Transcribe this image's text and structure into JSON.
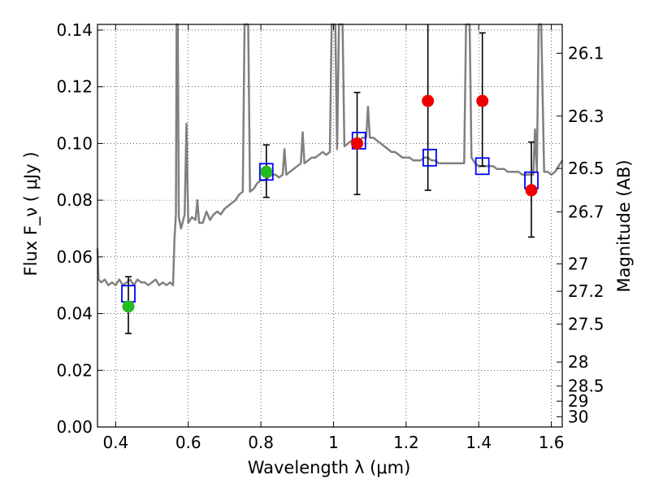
{
  "chart_data": {
    "type": "scatter",
    "title": "",
    "xlabel": "Wavelength  λ (μm)",
    "ylabel": "Flux  F_ν  ( μJy )",
    "ylabel_right": "Magnitude (AB)",
    "xlim": [
      0.35,
      1.63
    ],
    "ylim": [
      0.0,
      0.142
    ],
    "grid": true,
    "x_ticks": [
      0.4,
      0.6,
      0.8,
      1.0,
      1.2,
      1.4,
      1.6
    ],
    "x_tick_labels": [
      "0.4",
      "0.6",
      "0.8",
      "1",
      "1.2",
      "1.4",
      "1.6"
    ],
    "y_ticks": [
      0.0,
      0.02,
      0.04,
      0.06,
      0.08,
      0.1,
      0.12,
      0.14
    ],
    "y_tick_labels": [
      "0.00",
      "0.02",
      "0.04",
      "0.06",
      "0.08",
      "0.10",
      "0.12",
      "0.14"
    ],
    "right_ticks": [
      {
        "label": "26.1",
        "mag": 26.1
      },
      {
        "label": "26.3",
        "mag": 26.3
      },
      {
        "label": "26.5",
        "mag": 26.5
      },
      {
        "label": "26.7",
        "mag": 26.7
      },
      {
        "label": "27",
        "mag": 27.0
      },
      {
        "label": "27.2",
        "mag": 27.2
      },
      {
        "label": "27.5",
        "mag": 27.5
      },
      {
        "label": "28",
        "mag": 28.0
      },
      {
        "label": "28.5",
        "mag": 28.5
      },
      {
        "label": "29",
        "mag": 29.0
      },
      {
        "label": "30",
        "mag": 30.0
      }
    ],
    "model_spectrum": {
      "color": "#808080",
      "points": [
        [
          0.35,
          0.063
        ],
        [
          0.353,
          0.052
        ],
        [
          0.36,
          0.051
        ],
        [
          0.37,
          0.052
        ],
        [
          0.38,
          0.05
        ],
        [
          0.39,
          0.051
        ],
        [
          0.4,
          0.05
        ],
        [
          0.41,
          0.052
        ],
        [
          0.42,
          0.05
        ],
        [
          0.43,
          0.051
        ],
        [
          0.44,
          0.052
        ],
        [
          0.45,
          0.05
        ],
        [
          0.46,
          0.052
        ],
        [
          0.47,
          0.051
        ],
        [
          0.48,
          0.051
        ],
        [
          0.49,
          0.05
        ],
        [
          0.5,
          0.051
        ],
        [
          0.51,
          0.052
        ],
        [
          0.52,
          0.05
        ],
        [
          0.53,
          0.051
        ],
        [
          0.54,
          0.05
        ],
        [
          0.55,
          0.051
        ],
        [
          0.558,
          0.05
        ],
        [
          0.562,
          0.066
        ],
        [
          0.566,
          0.075
        ],
        [
          0.568,
          0.142
        ],
        [
          0.571,
          0.142
        ],
        [
          0.574,
          0.074
        ],
        [
          0.58,
          0.07
        ],
        [
          0.59,
          0.075
        ],
        [
          0.595,
          0.107
        ],
        [
          0.6,
          0.072
        ],
        [
          0.61,
          0.074
        ],
        [
          0.62,
          0.073
        ],
        [
          0.625,
          0.08
        ],
        [
          0.63,
          0.072
        ],
        [
          0.64,
          0.072
        ],
        [
          0.65,
          0.076
        ],
        [
          0.66,
          0.073
        ],
        [
          0.67,
          0.075
        ],
        [
          0.68,
          0.076
        ],
        [
          0.69,
          0.075
        ],
        [
          0.7,
          0.077
        ],
        [
          0.71,
          0.078
        ],
        [
          0.72,
          0.079
        ],
        [
          0.73,
          0.08
        ],
        [
          0.74,
          0.082
        ],
        [
          0.75,
          0.083
        ],
        [
          0.755,
          0.142
        ],
        [
          0.765,
          0.142
        ],
        [
          0.77,
          0.083
        ],
        [
          0.78,
          0.084
        ],
        [
          0.79,
          0.086
        ],
        [
          0.8,
          0.087
        ],
        [
          0.81,
          0.087
        ],
        [
          0.82,
          0.088
        ],
        [
          0.83,
          0.089
        ],
        [
          0.84,
          0.089
        ],
        [
          0.85,
          0.088
        ],
        [
          0.86,
          0.089
        ],
        [
          0.865,
          0.098
        ],
        [
          0.87,
          0.089
        ],
        [
          0.88,
          0.09
        ],
        [
          0.89,
          0.091
        ],
        [
          0.9,
          0.092
        ],
        [
          0.91,
          0.093
        ],
        [
          0.915,
          0.104
        ],
        [
          0.92,
          0.093
        ],
        [
          0.93,
          0.094
        ],
        [
          0.94,
          0.095
        ],
        [
          0.95,
          0.095
        ],
        [
          0.96,
          0.096
        ],
        [
          0.97,
          0.097
        ],
        [
          0.98,
          0.096
        ],
        [
          0.99,
          0.097
        ],
        [
          0.995,
          0.142
        ],
        [
          1.005,
          0.142
        ],
        [
          1.01,
          0.098
        ],
        [
          1.015,
          0.142
        ],
        [
          1.025,
          0.142
        ],
        [
          1.03,
          0.099
        ],
        [
          1.04,
          0.1
        ],
        [
          1.05,
          0.101
        ],
        [
          1.06,
          0.101
        ],
        [
          1.07,
          0.101
        ],
        [
          1.08,
          0.102
        ],
        [
          1.09,
          0.102
        ],
        [
          1.095,
          0.113
        ],
        [
          1.1,
          0.102
        ],
        [
          1.11,
          0.102
        ],
        [
          1.12,
          0.101
        ],
        [
          1.13,
          0.1
        ],
        [
          1.14,
          0.099
        ],
        [
          1.15,
          0.098
        ],
        [
          1.16,
          0.097
        ],
        [
          1.17,
          0.097
        ],
        [
          1.18,
          0.096
        ],
        [
          1.19,
          0.095
        ],
        [
          1.2,
          0.095
        ],
        [
          1.21,
          0.095
        ],
        [
          1.22,
          0.094
        ],
        [
          1.23,
          0.094
        ],
        [
          1.24,
          0.094
        ],
        [
          1.25,
          0.095
        ],
        [
          1.26,
          0.095
        ],
        [
          1.27,
          0.094
        ],
        [
          1.28,
          0.094
        ],
        [
          1.29,
          0.093
        ],
        [
          1.3,
          0.093
        ],
        [
          1.31,
          0.093
        ],
        [
          1.32,
          0.093
        ],
        [
          1.33,
          0.093
        ],
        [
          1.34,
          0.093
        ],
        [
          1.35,
          0.093
        ],
        [
          1.36,
          0.093
        ],
        [
          1.365,
          0.142
        ],
        [
          1.375,
          0.142
        ],
        [
          1.38,
          0.095
        ],
        [
          1.39,
          0.093
        ],
        [
          1.4,
          0.092
        ],
        [
          1.41,
          0.092
        ],
        [
          1.42,
          0.092
        ],
        [
          1.43,
          0.092
        ],
        [
          1.44,
          0.092
        ],
        [
          1.45,
          0.091
        ],
        [
          1.46,
          0.091
        ],
        [
          1.47,
          0.091
        ],
        [
          1.48,
          0.09
        ],
        [
          1.49,
          0.09
        ],
        [
          1.5,
          0.09
        ],
        [
          1.51,
          0.09
        ],
        [
          1.52,
          0.089
        ],
        [
          1.53,
          0.089
        ],
        [
          1.54,
          0.089
        ],
        [
          1.55,
          0.089
        ],
        [
          1.555,
          0.105
        ],
        [
          1.56,
          0.09
        ],
        [
          1.565,
          0.142
        ],
        [
          1.572,
          0.142
        ],
        [
          1.58,
          0.09
        ],
        [
          1.59,
          0.09
        ],
        [
          1.6,
          0.089
        ],
        [
          1.61,
          0.09
        ],
        [
          1.62,
          0.092
        ],
        [
          1.63,
          0.094
        ]
      ]
    },
    "model_photometry": {
      "marker": "open-square",
      "color": "#0000ff",
      "points": [
        {
          "x": 0.435,
          "y": 0.047
        },
        {
          "x": 0.815,
          "y": 0.09
        },
        {
          "x": 1.07,
          "y": 0.101
        },
        {
          "x": 1.265,
          "y": 0.095
        },
        {
          "x": 1.41,
          "y": 0.092
        },
        {
          "x": 1.545,
          "y": 0.087
        }
      ]
    },
    "observed": [
      {
        "x": 0.435,
        "y": 0.0425,
        "err_lo": 0.033,
        "err_hi": 0.053,
        "color": "#22bb22"
      },
      {
        "x": 0.815,
        "y": 0.09,
        "err_lo": 0.081,
        "err_hi": 0.0995,
        "color": "#22bb22"
      },
      {
        "x": 1.065,
        "y": 0.1,
        "err_lo": 0.082,
        "err_hi": 0.118,
        "color": "#ee0000"
      },
      {
        "x": 1.26,
        "y": 0.115,
        "err_lo": 0.0835,
        "err_hi": 0.142,
        "color": "#ee0000"
      },
      {
        "x": 1.41,
        "y": 0.115,
        "err_lo": 0.092,
        "err_hi": 0.139,
        "color": "#ee0000"
      },
      {
        "x": 1.545,
        "y": 0.0835,
        "err_lo": 0.067,
        "err_hi": 0.1005,
        "color": "#ee0000"
      }
    ]
  }
}
